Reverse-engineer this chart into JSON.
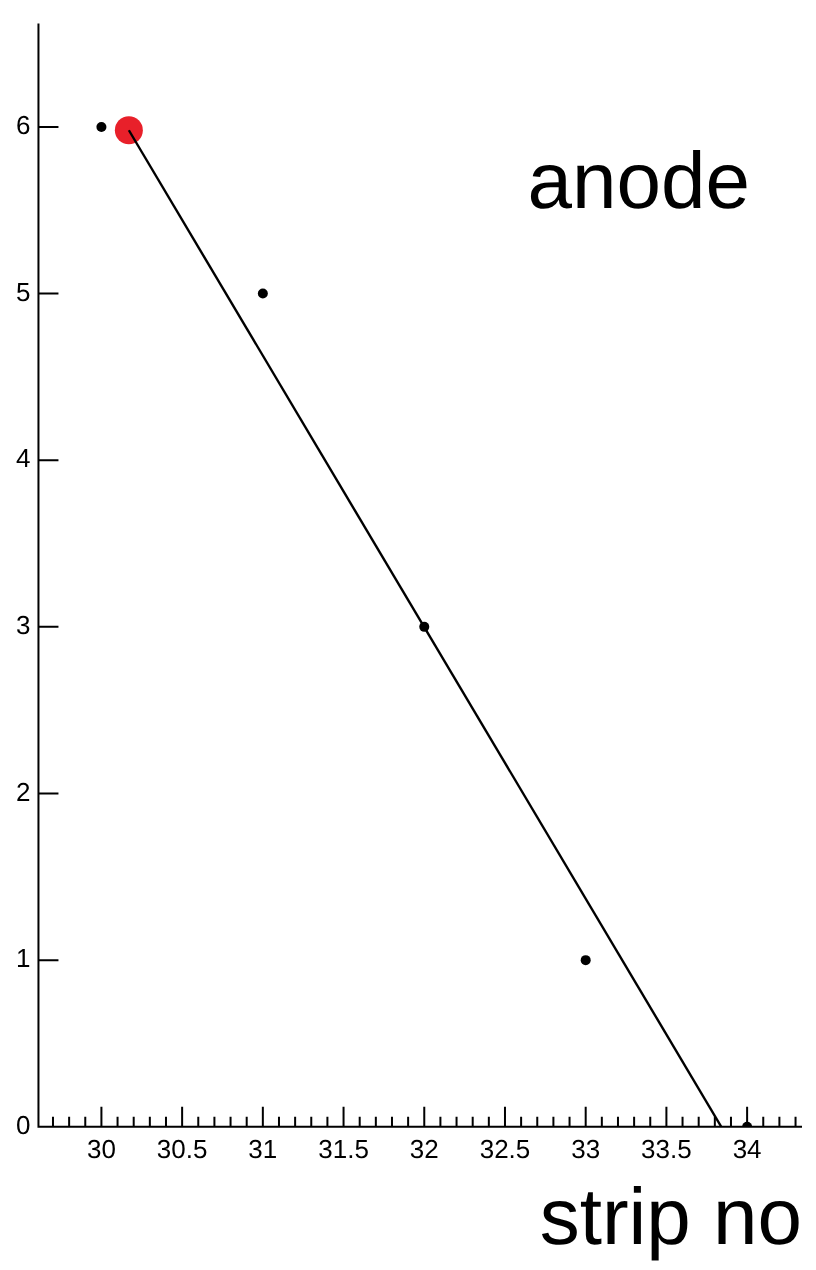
{
  "chart_data": {
    "type": "scatter",
    "xlabel": "strip no",
    "annotations": [
      "anode"
    ],
    "marker": "circle",
    "grid": false,
    "legend": false,
    "xlim": [
      29.61,
      34.34
    ],
    "ylim": [
      0,
      6.62
    ],
    "xticks": [
      {
        "value": 29.7,
        "label": null
      },
      {
        "value": 29.8,
        "label": null
      },
      {
        "value": 29.9,
        "label": null
      },
      {
        "value": 30,
        "label": "30"
      },
      {
        "value": 30.1,
        "label": null
      },
      {
        "value": 30.2,
        "label": null
      },
      {
        "value": 30.3,
        "label": null
      },
      {
        "value": 30.4,
        "label": null
      },
      {
        "value": 30.5,
        "label": "30.5"
      },
      {
        "value": 30.6,
        "label": null
      },
      {
        "value": 30.7,
        "label": null
      },
      {
        "value": 30.8,
        "label": null
      },
      {
        "value": 30.9,
        "label": null
      },
      {
        "value": 31,
        "label": "31"
      },
      {
        "value": 31.1,
        "label": null
      },
      {
        "value": 31.2,
        "label": null
      },
      {
        "value": 31.3,
        "label": null
      },
      {
        "value": 31.4,
        "label": null
      },
      {
        "value": 31.5,
        "label": "31.5"
      },
      {
        "value": 31.6,
        "label": null
      },
      {
        "value": 31.7,
        "label": null
      },
      {
        "value": 31.8,
        "label": null
      },
      {
        "value": 31.9,
        "label": null
      },
      {
        "value": 32,
        "label": "32"
      },
      {
        "value": 32.1,
        "label": null
      },
      {
        "value": 32.2,
        "label": null
      },
      {
        "value": 32.3,
        "label": null
      },
      {
        "value": 32.4,
        "label": null
      },
      {
        "value": 32.5,
        "label": "32.5"
      },
      {
        "value": 32.6,
        "label": null
      },
      {
        "value": 32.7,
        "label": null
      },
      {
        "value": 32.8,
        "label": null
      },
      {
        "value": 32.9,
        "label": null
      },
      {
        "value": 33,
        "label": "33"
      },
      {
        "value": 33.1,
        "label": null
      },
      {
        "value": 33.2,
        "label": null
      },
      {
        "value": 33.3,
        "label": null
      },
      {
        "value": 33.4,
        "label": null
      },
      {
        "value": 33.5,
        "label": "33.5"
      },
      {
        "value": 33.6,
        "label": null
      },
      {
        "value": 33.7,
        "label": null
      },
      {
        "value": 33.8,
        "label": null
      },
      {
        "value": 33.9,
        "label": null
      },
      {
        "value": 34,
        "label": "34"
      },
      {
        "value": 34.1,
        "label": null
      },
      {
        "value": 34.2,
        "label": null
      },
      {
        "value": 34.3,
        "label": null
      }
    ],
    "yticks": [
      0,
      1,
      2,
      3,
      4,
      5,
      6
    ],
    "series": [
      {
        "type": "scatter",
        "color": "#000000",
        "x": [
          30,
          31,
          32,
          33,
          34
        ],
        "values": [
          6,
          5,
          3,
          1,
          0
        ]
      },
      {
        "type": "line",
        "color": "#000000",
        "marker": "none",
        "line_style": "solid",
        "x": [
          30.17,
          33.84
        ],
        "values": [
          5.98,
          0
        ]
      },
      {
        "type": "scatter",
        "color": "#e8202a",
        "x": [
          30.17
        ],
        "values": [
          5.98
        ]
      }
    ]
  }
}
